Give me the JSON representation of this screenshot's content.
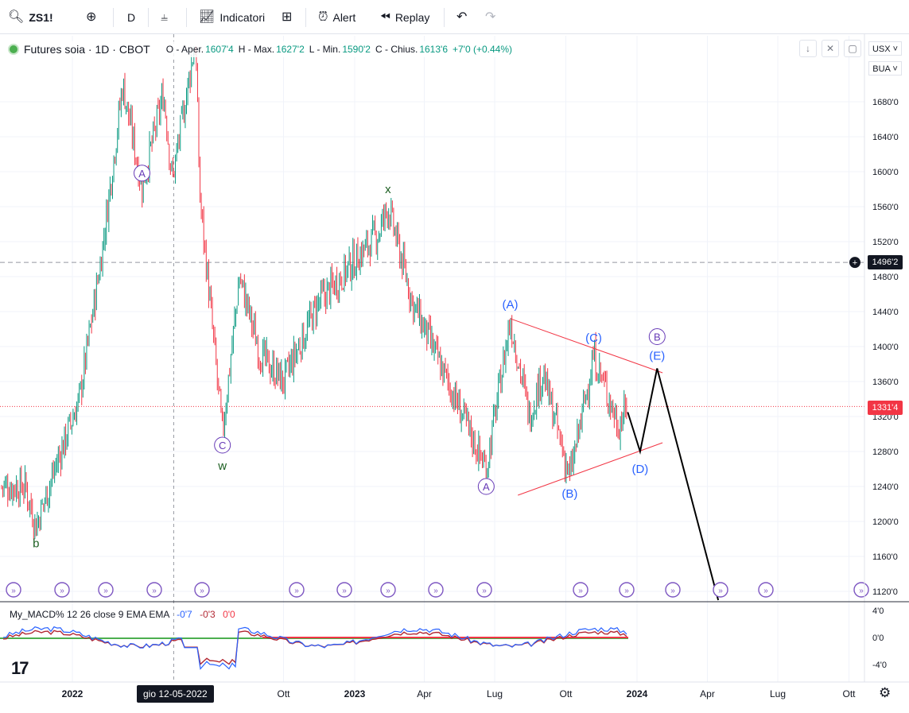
{
  "toolbar": {
    "symbol": "ZS1!",
    "interval": "D",
    "indicators_label": "Indicatori",
    "alert_label": "Alert",
    "replay_label": "Replay"
  },
  "legend": {
    "title": "Futures soia · 1D · CBOT",
    "open_label": "O - Aper.",
    "open": "1607'4",
    "high_label": "H - Max.",
    "high": "1627'2",
    "low_label": "L - Min.",
    "low": "1590'2",
    "close_label": "C - Chius.",
    "close": "1613'6",
    "change": "+7'0 (+0.44%)"
  },
  "price_scale": {
    "currency": "USX",
    "unit": "BUA",
    "ticks": [
      "1680'0",
      "1640'0",
      "1600'0",
      "1560'0",
      "1520'0",
      "1480'0",
      "1440'0",
      "1400'0",
      "1360'0",
      "1320'0",
      "1280'0",
      "1240'0",
      "1200'0",
      "1160'0",
      "1120'0"
    ],
    "crosshair_price": "1496'2",
    "last_price": "1331'4"
  },
  "macd": {
    "name": "My_MACD% 12 26 close 9 EMA EMA",
    "macd_value": "-0'7",
    "signal_value": "-0'3",
    "hist_value": "0'0",
    "ticks": [
      "4'0",
      "0'0",
      "-4'0"
    ]
  },
  "time_axis": {
    "labels": [
      "2022",
      "Ott",
      "2023",
      "Apr",
      "Lug",
      "Ott",
      "2024",
      "Apr",
      "Lug",
      "Ott"
    ],
    "crosshair_date": "gio 12-05-2022"
  },
  "colors": {
    "up": "#089981",
    "down": "#f23645",
    "wave_blue": "#2962ff",
    "wave_purple": "#673ab7",
    "wave_green": "#1b5e20",
    "trendline": "#f23645",
    "projection": "#000000"
  },
  "chart_data": {
    "type": "candlestick",
    "symbol": "ZS1!",
    "interval": "1D",
    "ylim": [
      1110,
      1720
    ],
    "grid": true,
    "price_path": [
      {
        "date": "2021-11-01",
        "price": 1240
      },
      {
        "date": "2021-11-15",
        "price": 1195
      },
      {
        "date": "2021-12-10",
        "price": 1262
      },
      {
        "date": "2022-01-10",
        "price": 1340
      },
      {
        "date": "2022-02-07",
        "price": 1500
      },
      {
        "date": "2022-02-24",
        "price": 1620
      },
      {
        "date": "2022-03-07",
        "price": 1700
      },
      {
        "date": "2022-04-01",
        "price": 1582
      },
      {
        "date": "2022-04-29",
        "price": 1690
      },
      {
        "date": "2022-05-10",
        "price": 1590
      },
      {
        "date": "2022-06-09",
        "price": 1750
      },
      {
        "date": "2022-06-15",
        "price": 1570
      },
      {
        "date": "2022-07-14",
        "price": 1300
      },
      {
        "date": "2022-08-05",
        "price": 1480
      },
      {
        "date": "2022-09-01",
        "price": 1390
      },
      {
        "date": "2022-10-01",
        "price": 1360
      },
      {
        "date": "2022-11-15",
        "price": 1450
      },
      {
        "date": "2023-02-01",
        "price": 1530
      },
      {
        "date": "2023-02-13",
        "price": 1560
      },
      {
        "date": "2023-03-17",
        "price": 1450
      },
      {
        "date": "2023-05-31",
        "price": 1300
      },
      {
        "date": "2023-06-20",
        "price": 1260
      },
      {
        "date": "2023-07-21",
        "price": 1430
      },
      {
        "date": "2023-08-15",
        "price": 1320
      },
      {
        "date": "2023-09-01",
        "price": 1370
      },
      {
        "date": "2023-10-06",
        "price": 1250
      },
      {
        "date": "2023-11-06",
        "price": 1390
      },
      {
        "date": "2023-12-08",
        "price": 1310
      },
      {
        "date": "2023-12-20",
        "price": 1331.5
      }
    ],
    "wave_labels": [
      {
        "text": "b",
        "date": "2021-11-15",
        "price": 1195,
        "style": "green"
      },
      {
        "text": "A",
        "date": "2022-04-01",
        "price": 1582,
        "style": "purple-circle"
      },
      {
        "text": "C",
        "date": "2022-07-14",
        "price": 1300,
        "style": "purple-circle"
      },
      {
        "text": "w",
        "date": "2022-07-14",
        "price": 1300,
        "style": "green"
      },
      {
        "text": "x",
        "date": "2023-02-13",
        "price": 1560,
        "style": "green"
      },
      {
        "text": "(A)",
        "date": "2023-07-21",
        "price": 1430,
        "style": "blue"
      },
      {
        "text": "A",
        "date": "2023-06-20",
        "price": 1260,
        "style": "purple-circle"
      },
      {
        "text": "(B)",
        "date": "2023-10-06",
        "price": 1250,
        "style": "blue"
      },
      {
        "text": "(C)",
        "date": "2023-11-06",
        "price": 1390,
        "style": "blue"
      },
      {
        "text": "(D)",
        "date": "2024-01-05",
        "price": 1280,
        "style": "blue"
      },
      {
        "text": "(E)",
        "date": "2024-01-27",
        "price": 1375,
        "style": "blue"
      },
      {
        "text": "B",
        "date": "2024-01-27",
        "price": 1375,
        "style": "purple-circle"
      }
    ],
    "trendlines": [
      {
        "from": {
          "date": "2023-07-21",
          "price": 1432
        },
        "to": {
          "date": "2024-02-03",
          "price": 1370
        }
      },
      {
        "from": {
          "date": "2023-07-31",
          "price": 1230
        },
        "to": {
          "date": "2024-02-03",
          "price": 1290
        }
      }
    ],
    "projection": [
      {
        "date": "2023-12-20",
        "price": 1325
      },
      {
        "date": "2024-01-05",
        "price": 1280
      },
      {
        "date": "2024-01-27",
        "price": 1375
      },
      {
        "date": "2024-04-15",
        "price": 1110
      }
    ],
    "horizontal_lines": [
      {
        "price": 1496.25,
        "style": "dashed",
        "label": "1496'2"
      },
      {
        "price": 1331.5,
        "style": "dotted",
        "label": "1331'4"
      }
    ]
  }
}
